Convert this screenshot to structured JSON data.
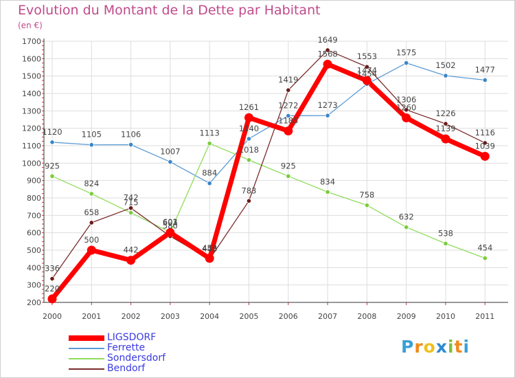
{
  "title": "Evolution du Montant de la Dette par Habitant",
  "unit": "(en €)",
  "brand": {
    "letters": [
      "P",
      "r",
      "o",
      "x",
      "i",
      "t",
      "i"
    ],
    "colors": [
      "#3aa0d8",
      "#f08a1c",
      "#f0c020",
      "#2a8ad0",
      "#7cc040",
      "#f08a1c",
      "#3aa0d8"
    ]
  },
  "chart_data": {
    "type": "line",
    "x": [
      "2000",
      "2001",
      "2002",
      "2003",
      "2004",
      "2005",
      "2006",
      "2007",
      "2008",
      "2009",
      "2010",
      "2011"
    ],
    "ylim": [
      200,
      1700
    ],
    "yticks": [
      200,
      300,
      400,
      500,
      600,
      700,
      800,
      900,
      1000,
      1100,
      1200,
      1300,
      1400,
      1500,
      1600,
      1700
    ],
    "grid": true,
    "legend_position": "bottom-left",
    "series": [
      {
        "name": "Ferrette",
        "color": "#5b9bd5",
        "width": 1.3,
        "marker_color": "#3a86c8",
        "values": [
          1120,
          1105,
          1106,
          1007,
          884,
          1140,
          1272,
          1273,
          1454,
          1575,
          1502,
          1477
        ]
      },
      {
        "name": "Sondersdorf",
        "color": "#8fdc5a",
        "width": 1.3,
        "marker_color": "#7acc3c",
        "values": [
          925,
          824,
          715,
          603,
          1113,
          1018,
          925,
          834,
          758,
          632,
          538,
          454
        ]
      },
      {
        "name": "Bendorf",
        "color": "#7a2a2a",
        "width": 1.3,
        "marker_color": "#6b1a1a",
        "values": [
          336,
          658,
          742,
          580,
          448,
          783,
          1419,
          1649,
          1553,
          1306,
          1226,
          1116
        ]
      },
      {
        "name": "LIGSDORF",
        "color": "#ff0000",
        "width": 7,
        "marker_color": "#ff0000",
        "values": [
          220,
          500,
          442,
          601,
          453,
          1261,
          1185,
          1568,
          1474,
          1260,
          1139,
          1039
        ]
      }
    ],
    "legend_order": [
      "LIGSDORF",
      "Ferrette",
      "Sondersdorf",
      "Bendorf"
    ]
  }
}
